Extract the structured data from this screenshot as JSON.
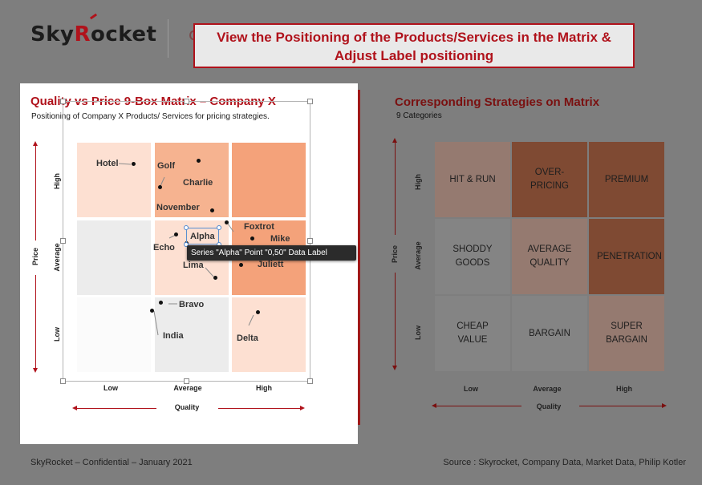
{
  "header": {
    "logo_text_a": "Sky",
    "logo_text_r": "R",
    "logo_text_b": "ocket",
    "banner_line1": "View the Positioning of the Products/Services in the Matrix &",
    "banner_line2": "Adjust Label positioning"
  },
  "left_chart": {
    "title": "Quality vs Price 9-Box Matrix – Company X",
    "subtitle": "Positioning of Company X Products/ Services for pricing strategies.",
    "y_axis_label": "Price",
    "x_axis_label": "Quality",
    "y_ticks": [
      "High",
      "Average",
      "Low"
    ],
    "x_ticks": [
      "Low",
      "Average",
      "High"
    ],
    "cell_colors": [
      [
        "#fde0d2",
        "#f6b390",
        "#f4a27a"
      ],
      [
        "#ececec",
        "#fde0d2",
        "#f4a27a"
      ],
      [
        "#fbfbfb",
        "#ececec",
        "#fde0d2"
      ]
    ],
    "points": [
      {
        "name": "Hotel"
      },
      {
        "name": "Golf"
      },
      {
        "name": "Charlie"
      },
      {
        "name": "November"
      },
      {
        "name": "Foxtrot"
      },
      {
        "name": "Mike"
      },
      {
        "name": "Alpha"
      },
      {
        "name": "Echo"
      },
      {
        "name": "Lima"
      },
      {
        "name": "Juliett"
      },
      {
        "name": "Bravo"
      },
      {
        "name": "India"
      },
      {
        "name": "Delta"
      }
    ],
    "tooltip": "Series \"Alpha\" Point \"0,50\" Data Label"
  },
  "right_chart": {
    "title": "Corresponding Strategies on Matrix",
    "subtitle": "9 Categories",
    "y_axis_label": "Price",
    "x_axis_label": "Quality",
    "y_ticks": [
      "High",
      "Average",
      "Low"
    ],
    "x_ticks": [
      "Low",
      "Average",
      "High"
    ],
    "cells": [
      [
        {
          "label": "HIT & RUN",
          "color": "#957a70"
        },
        {
          "label": "OVER-PRICING",
          "color": "#7f4a33"
        },
        {
          "label": "PREMIUM",
          "color": "#7f4a33"
        }
      ],
      [
        {
          "label": "SHODDY GOODS",
          "color": "#848484"
        },
        {
          "label": "AVERAGE QUALITY",
          "color": "#957a70"
        },
        {
          "label": "PENETRATION",
          "color": "#7f4a33"
        }
      ],
      [
        {
          "label": "CHEAP VALUE",
          "color": "#848484"
        },
        {
          "label": "BARGAIN",
          "color": "#848484"
        },
        {
          "label": "SUPER BARGAIN",
          "color": "#957a70"
        }
      ]
    ]
  },
  "footer": {
    "left": "SkyRocket – Confidential – January 2021",
    "right": "Source : Skyrocket, Company Data, Market Data, Philip Kotler"
  }
}
